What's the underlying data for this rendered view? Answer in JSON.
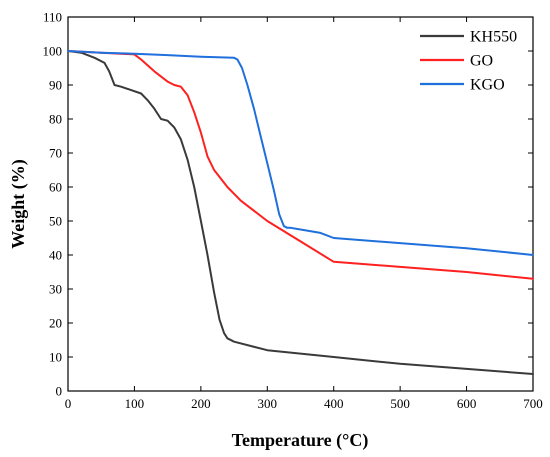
{
  "chart_data": {
    "type": "line",
    "xlabel": "Temperature (°C)",
    "ylabel": "Weight (%)",
    "xlim": [
      0,
      700
    ],
    "ylim": [
      0,
      110
    ],
    "xticks": [
      0,
      100,
      200,
      300,
      400,
      500,
      600,
      700
    ],
    "yticks": [
      0,
      10,
      20,
      30,
      40,
      50,
      60,
      70,
      80,
      90,
      100,
      110
    ],
    "grid": false,
    "legend_position": "top-right",
    "series": [
      {
        "name": "KH550",
        "color": "#3a3a3a",
        "x": [
          0,
          20,
          40,
          55,
          62,
          70,
          80,
          95,
          110,
          120,
          130,
          140,
          150,
          160,
          170,
          180,
          190,
          200,
          210,
          220,
          228,
          235,
          240,
          250,
          300,
          400,
          500,
          600,
          700
        ],
        "y": [
          100,
          99.5,
          98,
          96.5,
          94,
          90,
          89.5,
          88.5,
          87.5,
          85.5,
          83,
          80,
          79.5,
          77.5,
          74,
          68,
          60,
          50,
          40,
          29,
          21,
          17,
          15.5,
          14.5,
          12,
          10,
          8,
          6.5,
          5
        ]
      },
      {
        "name": "GO",
        "color": "#ff2020",
        "x": [
          0,
          50,
          100,
          110,
          130,
          150,
          160,
          170,
          180,
          190,
          200,
          210,
          220,
          240,
          260,
          300,
          350,
          400,
          500,
          600,
          700
        ],
        "y": [
          100,
          99.5,
          99,
          97.5,
          94,
          91,
          90,
          89.5,
          87,
          82,
          76,
          69,
          65,
          60,
          56,
          50,
          44,
          38,
          36.5,
          35,
          33
        ]
      },
      {
        "name": "KGO",
        "color": "#1f6fdc",
        "x": [
          0,
          50,
          100,
          150,
          200,
          250,
          255,
          262,
          270,
          280,
          290,
          300,
          310,
          318,
          325,
          330,
          335,
          350,
          380,
          400,
          500,
          600,
          700
        ],
        "y": [
          100,
          99.5,
          99.2,
          98.8,
          98.3,
          98,
          97.5,
          95,
          90,
          83,
          75,
          67,
          59,
          52,
          48.5,
          48,
          48,
          47.5,
          46.5,
          45,
          43.5,
          42,
          40
        ]
      }
    ]
  }
}
